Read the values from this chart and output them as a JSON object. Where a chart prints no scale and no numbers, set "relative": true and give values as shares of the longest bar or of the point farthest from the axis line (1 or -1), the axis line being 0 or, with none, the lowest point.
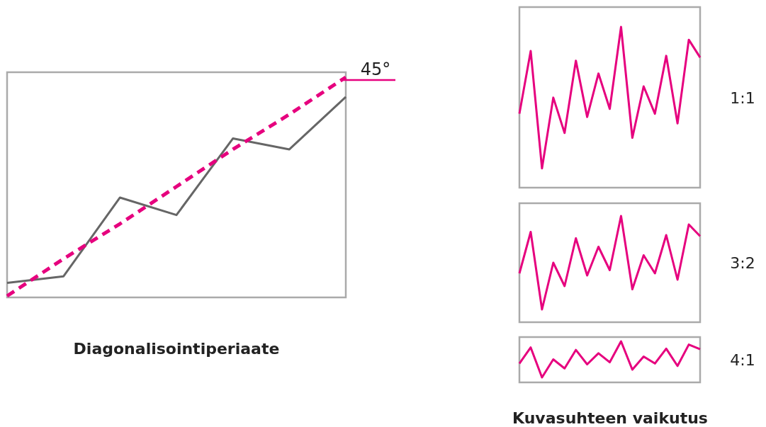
{
  "chart_data": [
    {
      "type": "line",
      "title": "Diagonalisointiperiaate",
      "relative": true,
      "categories": [
        null,
        null,
        null,
        null,
        null,
        null,
        null
      ],
      "series": [
        {
          "color": "#666666",
          "values": [
            0.06,
            0.09,
            0.45,
            0.37,
            0.72,
            0.67,
            0.91
          ]
        },
        {
          "color": "#e6007e",
          "line_style": "dashed",
          "values": [
            0,
            0.17,
            0.33,
            0.5,
            0.67,
            0.83,
            1
          ]
        }
      ],
      "annotations": [
        "45°"
      ]
    },
    {
      "type": "line",
      "y2label": "1:1",
      "relative": true,
      "categories": [
        null,
        null,
        null,
        null,
        null,
        null,
        null,
        null,
        null,
        null,
        null,
        null,
        null,
        null,
        null,
        null,
        null
      ],
      "series": [
        {
          "color": "#e6007e",
          "values": [
            0.46,
            0.85,
            0.12,
            0.56,
            0.34,
            0.79,
            0.44,
            0.71,
            0.49,
            1,
            0.31,
            0.63,
            0.46,
            0.82,
            0.4,
            0.92,
            0.81
          ]
        }
      ]
    },
    {
      "type": "line",
      "y2label": "3:2",
      "relative": true,
      "categories": [
        null,
        null,
        null,
        null,
        null,
        null,
        null,
        null,
        null,
        null,
        null,
        null,
        null,
        null,
        null,
        null,
        null
      ],
      "series": [
        {
          "color": "#e6007e",
          "values": [
            0.46,
            0.85,
            0.12,
            0.56,
            0.34,
            0.79,
            0.44,
            0.71,
            0.49,
            1,
            0.31,
            0.63,
            0.46,
            0.82,
            0.4,
            0.92,
            0.81
          ]
        }
      ]
    },
    {
      "type": "line",
      "y2label": "4:1",
      "relative": true,
      "categories": [
        null,
        null,
        null,
        null,
        null,
        null,
        null,
        null,
        null,
        null,
        null,
        null,
        null,
        null,
        null,
        null,
        null
      ],
      "series": [
        {
          "color": "#e6007e",
          "values": [
            0.46,
            0.85,
            0.12,
            0.56,
            0.34,
            0.79,
            0.44,
            0.71,
            0.49,
            1,
            0.31,
            0.63,
            0.46,
            0.82,
            0.4,
            0.92,
            0.81
          ]
        }
      ],
      "annotations": [
        "Kuvasuhteen vaikutus"
      ]
    }
  ]
}
